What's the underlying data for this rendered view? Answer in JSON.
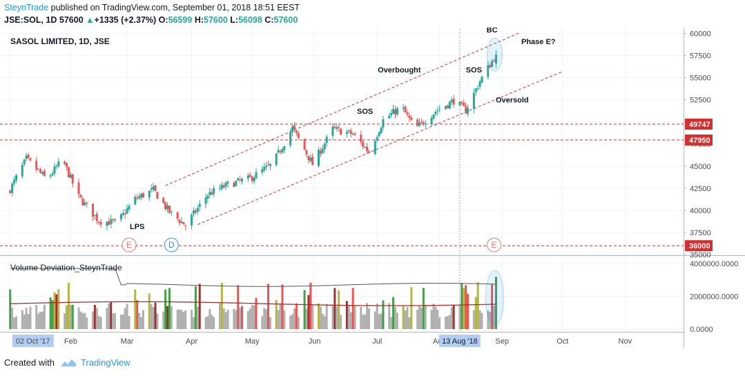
{
  "header": {
    "author": "SteynTrade",
    "published_text": " published on TradingView.com, September 01, 2018 18:51 EEST",
    "symbol": "JSE:SOL, 1D",
    "last_price": "57600",
    "arrow": "▲",
    "change": "+1335 (+2.37%)",
    "o_label": "O:",
    "o_value": "56599",
    "h_label": "H:",
    "h_value": "57600",
    "l_label": "L:",
    "l_value": "56098",
    "c_label": "C:",
    "c_value": "57600"
  },
  "footer": {
    "created_with": "Created with",
    "brand": "TradingView"
  },
  "colors": {
    "up": "#26a69a",
    "down": "#ef5350",
    "channel": "#d32f2f",
    "sr_line": "#d32f2f",
    "event_e": "#e57373",
    "event_d": "#2196f3",
    "vol_gray": "#b0b0b0",
    "vol_red": "#ef5350",
    "vol_darkred": "#a13030",
    "vol_olive": "#b5b542",
    "vol_green": "#43a047"
  },
  "chart_data": [
    {
      "type": "candlestick",
      "title": "SASOL LIMITED, 1D, JSE",
      "ylim": [
        35000,
        60500
      ],
      "y_ticks": [
        "60000",
        "57500",
        "55000",
        "52500",
        "50000",
        "47500",
        "45000",
        "42500",
        "40000",
        "37500",
        "35000"
      ],
      "x_ticks": [
        "02 Oct '17",
        "Feb",
        "Mar",
        "Apr",
        "May",
        "Jun",
        "Jul",
        "Aug",
        "Sep",
        "Oct",
        "Nov"
      ],
      "x_highlight": "13 Aug '18",
      "close_anchors": [
        [
          "2018-01-02",
          42400
        ],
        [
          "2018-01-10",
          45800
        ],
        [
          "2018-01-20",
          43500
        ],
        [
          "2018-01-28",
          45700
        ],
        [
          "2018-02-05",
          41500
        ],
        [
          "2018-02-15",
          38800
        ],
        [
          "2018-02-24",
          38600
        ],
        [
          "2018-03-05",
          41300
        ],
        [
          "2018-03-14",
          42300
        ],
        [
          "2018-03-22",
          39800
        ],
        [
          "2018-03-30",
          38300
        ],
        [
          "2018-04-10",
          41800
        ],
        [
          "2018-04-20",
          42900
        ],
        [
          "2018-05-01",
          43600
        ],
        [
          "2018-05-12",
          45200
        ],
        [
          "2018-05-22",
          49300
        ],
        [
          "2018-06-01",
          45200
        ],
        [
          "2018-06-11",
          49200
        ],
        [
          "2018-06-21",
          48600
        ],
        [
          "2018-06-29",
          46600
        ],
        [
          "2018-07-06",
          50200
        ],
        [
          "2018-07-15",
          51700
        ],
        [
          "2018-07-22",
          49200
        ],
        [
          "2018-08-01",
          51200
        ],
        [
          "2018-08-10",
          52400
        ],
        [
          "2018-08-16",
          51300
        ],
        [
          "2018-08-23",
          54600
        ],
        [
          "2018-08-31",
          57600
        ]
      ],
      "last_bar": {
        "date": "2018-08-31",
        "open": 56599,
        "high": 57600,
        "low": 56098,
        "close": 57600
      },
      "levels": [
        {
          "value": 49747,
          "label": "49747"
        },
        {
          "value": 47950,
          "label": "47950"
        },
        {
          "value": 36000,
          "label": "36000"
        }
      ],
      "channel": {
        "upper": [
          [
            "2018-03-20",
            42800
          ],
          [
            "2018-09-12",
            60100
          ]
        ],
        "lower": [
          [
            "2018-04-05",
            38400
          ],
          [
            "2018-10-03",
            55700
          ]
        ]
      },
      "vertical_marker": "2018-08-13",
      "annotations": [
        {
          "text": "LPS",
          "date": "2018-03-06",
          "value": 37900
        },
        {
          "text": "Overbought",
          "date": "2018-07-14",
          "value": 55600
        },
        {
          "text": "SOS",
          "date": "2018-06-27",
          "value": 50900
        },
        {
          "text": "SOS",
          "date": "2018-08-20",
          "value": 55600
        },
        {
          "text": "BC",
          "date": "2018-08-29",
          "value": 60100
        },
        {
          "text": "Phase E?",
          "date": "2018-09-21",
          "value": 58800
        },
        {
          "text": "Oversold",
          "date": "2018-09-08",
          "value": 52200
        }
      ],
      "events": [
        {
          "letter": "E",
          "date": "2018-03-02"
        },
        {
          "letter": "D",
          "date": "2018-03-23"
        },
        {
          "letter": "E",
          "date": "2018-08-30"
        }
      ]
    },
    {
      "type": "bar",
      "title": "Volume Deviation_SteynTrade",
      "ylim": [
        0,
        4000000
      ],
      "y_ticks": [
        "4000000.0000",
        "2000000.0000",
        "0.0000"
      ],
      "series": [
        {
          "name": "",
          "note": "volume histogram, daily"
        },
        {
          "name": "",
          "note": "upper deviation line"
        },
        {
          "name": "",
          "note": "average line"
        }
      ]
    }
  ]
}
